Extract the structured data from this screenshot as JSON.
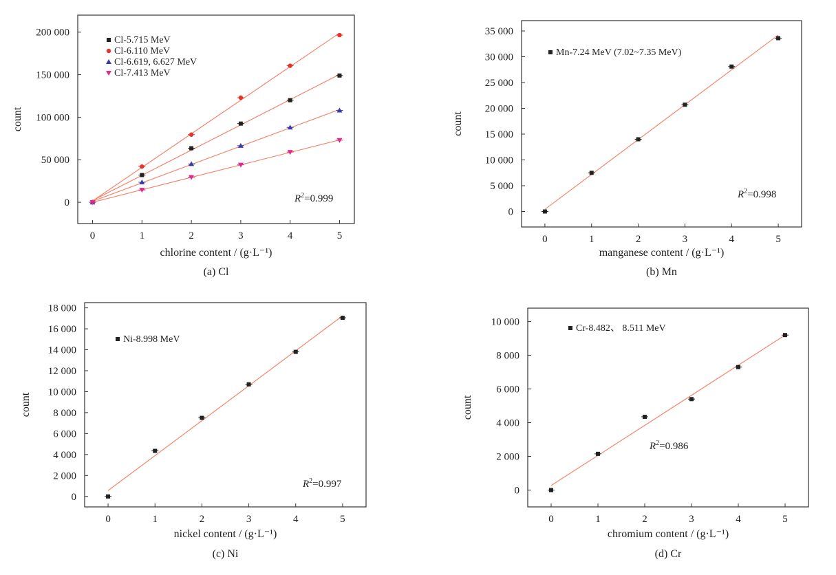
{
  "chart_data": [
    {
      "type": "scatter",
      "panel": "a",
      "caption": "(a) Cl",
      "xlabel": "chlorine content / (g·L⁻¹)",
      "ylabel": "count",
      "xlim": [
        -0.3,
        5.3
      ],
      "ylim": [
        -25000,
        220000
      ],
      "xticks": [
        0,
        1,
        2,
        3,
        4,
        5
      ],
      "yticks": [
        0,
        50000,
        100000,
        150000,
        200000
      ],
      "ytick_labels": [
        "0",
        "50 000",
        "100 000",
        "150 000",
        "200 000"
      ],
      "legend_position": "top-left",
      "r2_text": "=0.999",
      "x": [
        0,
        1,
        2,
        3,
        4,
        5
      ],
      "series": [
        {
          "name": "Cl-5.715 MeV",
          "marker": "square",
          "color": "#222222",
          "values": [
            0,
            32000,
            63500,
            92500,
            120000,
            149000
          ]
        },
        {
          "name": "Cl-6.110 MeV",
          "marker": "circle",
          "color": "#e8312a",
          "values": [
            0,
            42000,
            79500,
            123000,
            160500,
            196500
          ]
        },
        {
          "name": "Cl-6.619, 6.627 MeV",
          "marker": "triangle-up",
          "color": "#3b3ba8",
          "values": [
            0,
            23500,
            45000,
            66500,
            88000,
            108000
          ]
        },
        {
          "name": "Cl-7.413 MeV",
          "marker": "triangle-down",
          "color": "#e02a8a",
          "values": [
            0,
            14500,
            29500,
            44000,
            59000,
            73000
          ]
        }
      ],
      "fit_line_color": "#f2866e"
    },
    {
      "type": "scatter",
      "panel": "b",
      "caption": "(b) Mn",
      "xlabel": "manganese content / (g·L⁻¹)",
      "ylabel": "count",
      "xlim": [
        -0.5,
        5.5
      ],
      "ylim": [
        -3000,
        37000
      ],
      "xticks": [
        0,
        1,
        2,
        3,
        4,
        5
      ],
      "yticks": [
        0,
        5000,
        10000,
        15000,
        20000,
        25000,
        30000,
        35000
      ],
      "ytick_labels": [
        "0",
        "5 000",
        "10 000",
        "15 000",
        "20 000",
        "25 000",
        "30 000",
        "35 000"
      ],
      "legend_position": "top-left",
      "r2_text": "=0.998",
      "x": [
        0,
        1,
        2,
        3,
        4,
        5
      ],
      "series": [
        {
          "name": "Mn-7.24 MeV (7.02~7.35 MeV)",
          "marker": "square",
          "color": "#222222",
          "values": [
            0,
            7500,
            14000,
            20700,
            28100,
            33600
          ]
        }
      ],
      "fit_line_color": "#f2866e"
    },
    {
      "type": "scatter",
      "panel": "c",
      "caption": "(c) Ni",
      "xlabel": "nickel content / (g·L⁻¹)",
      "ylabel": "count",
      "xlim": [
        -0.5,
        5.5
      ],
      "ylim": [
        -1000,
        18500
      ],
      "xticks": [
        0,
        1,
        2,
        3,
        4,
        5
      ],
      "yticks": [
        0,
        2000,
        4000,
        6000,
        8000,
        10000,
        12000,
        14000,
        16000,
        18000
      ],
      "ytick_labels": [
        "0",
        "2 000",
        "4 000",
        "6 000",
        "8 000",
        "10 000",
        "12 000",
        "14 000",
        "16 000",
        "18 000"
      ],
      "legend_position": "top-left",
      "r2_text": "=0.997",
      "x": [
        0,
        1,
        2,
        3,
        4,
        5
      ],
      "series": [
        {
          "name": "Ni-8.998 MeV",
          "marker": "square",
          "color": "#222222",
          "values": [
            0,
            4350,
            7500,
            10700,
            13800,
            17050
          ]
        }
      ],
      "fit_line_color": "#f2866e"
    },
    {
      "type": "scatter",
      "panel": "d",
      "caption": "(d) Cr",
      "xlabel": "chromium content / (g·L⁻¹)",
      "ylabel": "count",
      "xlim": [
        -0.5,
        5.5
      ],
      "ylim": [
        -1000,
        10800
      ],
      "xticks": [
        0,
        1,
        2,
        3,
        4,
        5
      ],
      "yticks": [
        0,
        2000,
        4000,
        6000,
        8000,
        10000
      ],
      "ytick_labels": [
        "0",
        "2 000",
        "4 000",
        "6 000",
        "8 000",
        "10 000"
      ],
      "legend_position": "top-left",
      "r2_text": "=0.986",
      "x": [
        0,
        1,
        2,
        3,
        4,
        5
      ],
      "series": [
        {
          "name": "Cr-8.482、 8.511 MeV",
          "marker": "square",
          "color": "#222222",
          "values": [
            0,
            2150,
            4350,
            5400,
            7300,
            9200
          ]
        }
      ],
      "fit_line_color": "#f2866e"
    }
  ]
}
